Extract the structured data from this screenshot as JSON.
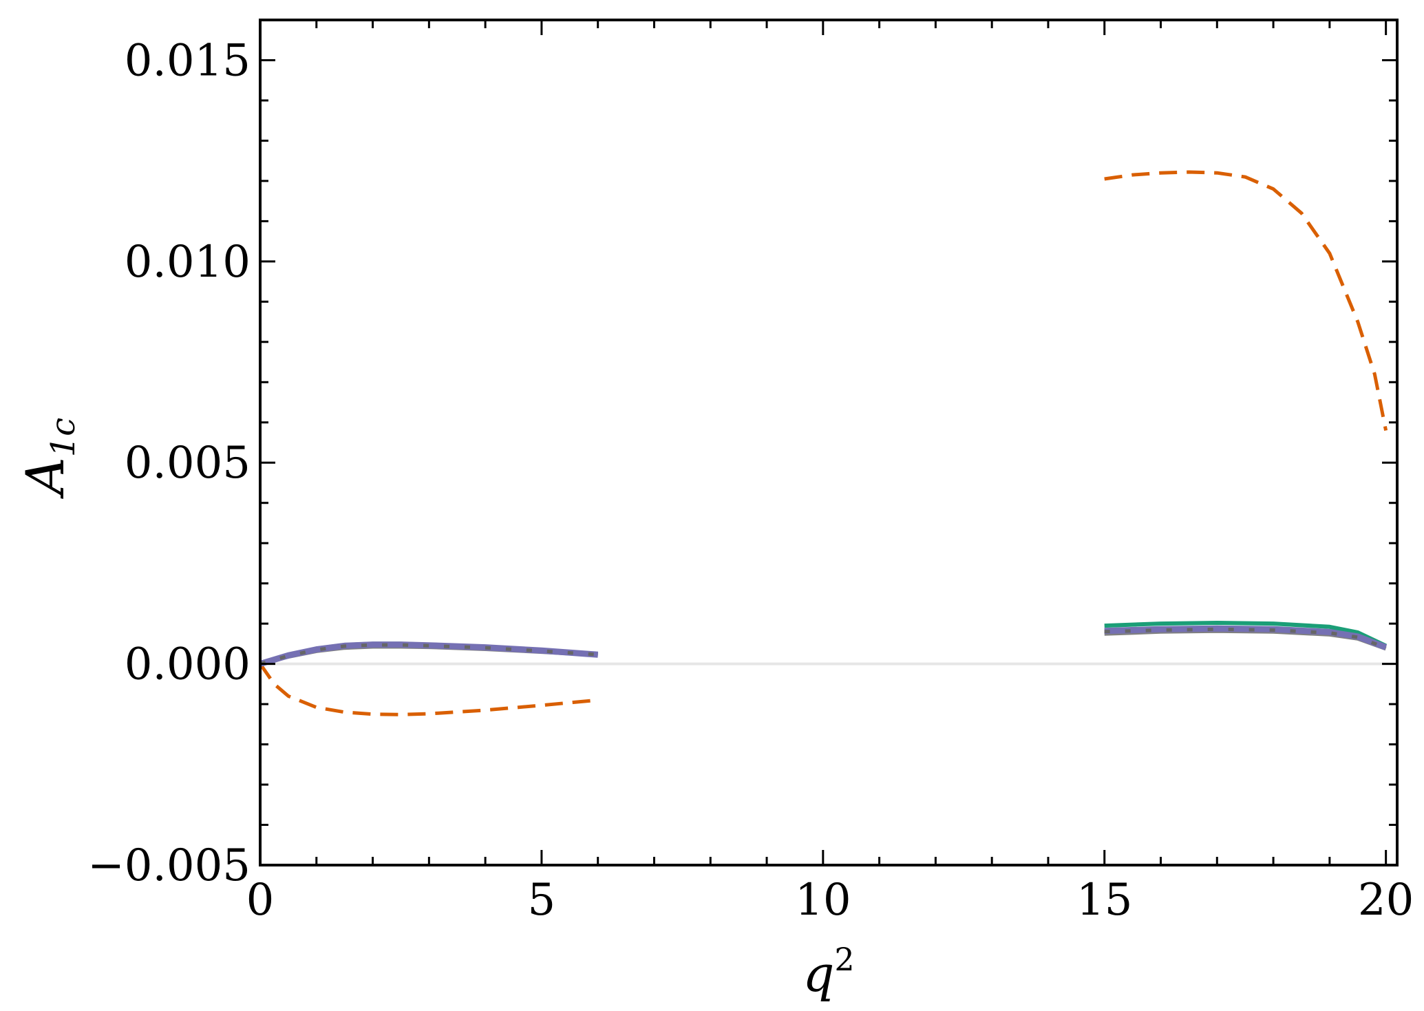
{
  "chart_data": {
    "type": "line",
    "xlabel_main": "q",
    "xlabel_sup": "2",
    "ylabel_main": "A",
    "ylabel_sub": "1c",
    "xlim": [
      0,
      20.2
    ],
    "ylim": [
      -0.005,
      0.016
    ],
    "x_ticks": [
      0,
      5,
      10,
      15,
      20
    ],
    "x_tick_labels": [
      "0",
      "5",
      "10",
      "15",
      "20"
    ],
    "y_ticks": [
      -0.005,
      0.0,
      0.005,
      0.01,
      0.015
    ],
    "y_tick_labels": [
      "−0.005",
      "0.000",
      "0.005",
      "0.010",
      "0.015"
    ],
    "x_minor_step": 1,
    "y_minor_step": 0.001,
    "grid": false,
    "zero_line": {
      "y": 0,
      "color": "#e6e6e6"
    },
    "series": [
      {
        "color": "#1b9e77",
        "style": "solid",
        "segments": [
          {
            "x": [
              0,
              0.5,
              1,
              1.5,
              2,
              2.5,
              3,
              4,
              5,
              6
            ],
            "y": [
              0,
              0.00022,
              0.00038,
              0.00047,
              0.0005,
              0.0005,
              0.00048,
              0.00042,
              0.00034,
              0.00024
            ]
          },
          {
            "x": [
              15,
              16,
              17,
              18,
              19,
              19.5,
              20
            ],
            "y": [
              0.00095,
              0.001,
              0.00102,
              0.001,
              0.00092,
              0.00078,
              0.00045
            ]
          }
        ]
      },
      {
        "color": "#d95f02",
        "style": "dashed",
        "segments": [
          {
            "x": [
              0,
              0.25,
              0.5,
              1,
              1.5,
              2,
              2.5,
              3,
              4,
              5,
              6
            ],
            "y": [
              0,
              -0.0005,
              -0.0008,
              -0.00108,
              -0.0012,
              -0.00125,
              -0.00126,
              -0.00124,
              -0.00115,
              -0.00103,
              -0.0009
            ]
          },
          {
            "x": [
              15,
              15.5,
              16,
              16.5,
              17,
              17.5,
              18,
              18.5,
              19,
              19.5,
              19.8,
              20
            ],
            "y": [
              0.01205,
              0.01215,
              0.0122,
              0.01222,
              0.0122,
              0.0121,
              0.0118,
              0.0112,
              0.0102,
              0.0085,
              0.0072,
              0.0058
            ]
          }
        ]
      },
      {
        "color": "#808080",
        "style": "solid",
        "segments": [
          {
            "x": [
              0,
              0.5,
              1,
              1.5,
              2,
              2.5,
              3,
              4,
              5,
              6
            ],
            "y": [
              0,
              0.00018,
              0.00032,
              0.0004,
              0.00043,
              0.00043,
              0.00042,
              0.00037,
              0.0003,
              0.00022
            ]
          },
          {
            "x": [
              15,
              16,
              17,
              18,
              19,
              19.5,
              20
            ],
            "y": [
              0.00075,
              0.0008,
              0.00082,
              0.0008,
              0.00073,
              0.00063,
              0.00038
            ]
          }
        ]
      },
      {
        "color": "#7570b3",
        "style": "solid",
        "segments": [
          {
            "x": [
              0,
              0.5,
              1,
              1.5,
              2,
              2.5,
              3,
              4,
              5,
              6
            ],
            "y": [
              0,
              0.00021,
              0.00036,
              0.00045,
              0.00048,
              0.00048,
              0.00046,
              0.00041,
              0.00033,
              0.00023
            ]
          },
          {
            "x": [
              15,
              16,
              17,
              18,
              19,
              19.5,
              20
            ],
            "y": [
              0.00082,
              0.00086,
              0.00088,
              0.00086,
              0.00079,
              0.00068,
              0.00041
            ]
          }
        ]
      },
      {
        "color": "#666666",
        "style": "dotted",
        "segments": [
          {
            "x": [
              0,
              0.5,
              1,
              1.5,
              2,
              2.5,
              3,
              4,
              5,
              6
            ],
            "y": [
              0,
              0.0002,
              0.00035,
              0.00044,
              0.00047,
              0.00047,
              0.00045,
              0.0004,
              0.00032,
              0.00023
            ]
          },
          {
            "x": [
              15,
              16,
              17,
              18,
              19,
              19.5,
              20
            ],
            "y": [
              0.0008,
              0.00084,
              0.00086,
              0.00084,
              0.00077,
              0.00066,
              0.0004
            ]
          }
        ]
      }
    ]
  }
}
